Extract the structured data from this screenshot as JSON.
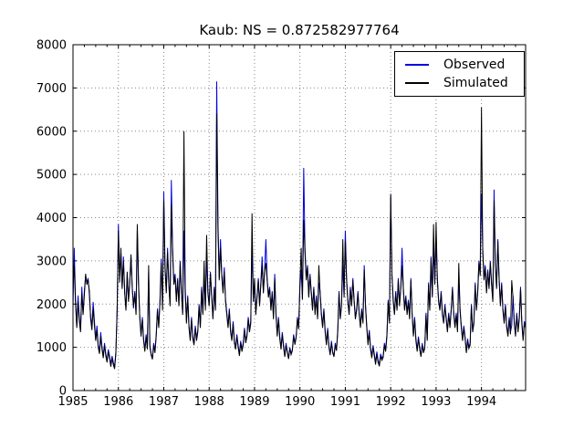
{
  "chart_data": {
    "type": "line",
    "title": "Kaub: NS = 0.872582977764",
    "station": "Kaub",
    "ns_coefficient": "0.872582977764",
    "xlabel": "",
    "ylabel": "",
    "x_axis": {
      "range": [
        1985,
        1994.9722
      ],
      "ticks": [
        1985,
        1986,
        1987,
        1988,
        1989,
        1990,
        1991,
        1992,
        1993,
        1994
      ],
      "tick_labels": [
        "1985",
        "1986",
        "1987",
        "1988",
        "1989",
        "1990",
        "1991",
        "1992",
        "1993",
        "1994"
      ],
      "minor_tick_interval": 0.25
    },
    "y_axis": {
      "range": [
        0,
        8000
      ],
      "ticks": [
        0,
        1000,
        2000,
        3000,
        4000,
        5000,
        6000,
        7000,
        8000
      ],
      "tick_labels": [
        "0",
        "1000",
        "2000",
        "3000",
        "4000",
        "5000",
        "6000",
        "7000",
        "8000"
      ]
    },
    "grid": {
      "visible": true,
      "style": "dotted",
      "color": "#888888"
    },
    "legend": {
      "position": "upper right",
      "entries": [
        {
          "label": "Observed",
          "color": "#0000dd"
        },
        {
          "label": "Simulated",
          "color": "#000000"
        }
      ]
    },
    "series": [
      {
        "name": "Observed",
        "color": "#0000dd",
        "x_start": 1985,
        "x_step_years": 0.0277778,
        "values": [
          1900,
          3300,
          2100,
          1500,
          2200,
          1700,
          1400,
          2400,
          1800,
          2300,
          2650,
          2500,
          2600,
          2200,
          1700,
          1500,
          2050,
          1600,
          1200,
          1500,
          1050,
          900,
          1350,
          1000,
          800,
          1100,
          850,
          700,
          950,
          800,
          600,
          800,
          650,
          550,
          900,
          1800,
          3850,
          2600,
          3200,
          2400,
          3100,
          2300,
          1900,
          2700,
          2100,
          2500,
          3100,
          2400,
          1900,
          2300,
          1800,
          3700,
          2400,
          1700,
          1300,
          1700,
          1200,
          950,
          1300,
          1000,
          2750,
          1050,
          850,
          750,
          1100,
          900,
          1300,
          1900,
          1500,
          2100,
          3050,
          1900,
          4600,
          2900,
          2300,
          3300,
          2500,
          2000,
          4870,
          3300,
          2500,
          2700,
          2100,
          2600,
          2000,
          3000,
          2300,
          1800,
          3700,
          2200,
          1600,
          2200,
          1500,
          1200,
          1700,
          1250,
          1100,
          1500,
          1200,
          1400,
          2000,
          1500,
          2400,
          1800,
          2600,
          1900,
          3100,
          2300,
          2000,
          2750,
          2200,
          1700,
          2400,
          1900,
          7150,
          3900,
          2600,
          3500,
          2700,
          2300,
          2850,
          2100,
          1800,
          1500,
          1900,
          1400,
          1200,
          1600,
          1150,
          1000,
          1300,
          1050,
          850,
          1150,
          950,
          1100,
          1450,
          1150,
          1300,
          1700,
          1400,
          1600,
          3300,
          2100,
          2400,
          1800,
          2200,
          2600,
          2000,
          2500,
          3100,
          2300,
          2800,
          3500,
          2600,
          2200,
          2400,
          1900,
          2300,
          1700,
          2700,
          1800,
          1300,
          1700,
          1250,
          1000,
          1350,
          1050,
          800,
          1100,
          900,
          750,
          1000,
          850,
          950,
          1300,
          1100,
          1250,
          1700,
          1450,
          2400,
          2800,
          2100,
          5150,
          3300,
          2600,
          2900,
          2200,
          2700,
          2300,
          1900,
          2400,
          1800,
          2200,
          1700,
          2500,
          2300,
          1800,
          1500,
          1900,
          1400,
          1100,
          1450,
          1050,
          850,
          1150,
          900,
          800,
          1100,
          950,
          1400,
          2300,
          1700,
          2000,
          2900,
          2200,
          3700,
          2600,
          2100,
          1800,
          2400,
          2000,
          2600,
          2100,
          1700,
          1900,
          2300,
          1800,
          1500,
          1900,
          1600,
          2900,
          2000,
          1500,
          1100,
          1400,
          1000,
          800,
          1050,
          850,
          650,
          900,
          700,
          600,
          850,
          750,
          800,
          1100,
          950,
          1300,
          2100,
          1600,
          4500,
          2700,
          2100,
          1800,
          2300,
          1900,
          2600,
          2000,
          2400,
          3300,
          2400,
          1900,
          2200,
          1800,
          2100,
          1700,
          2600,
          1800,
          1300,
          1700,
          1200,
          950,
          1250,
          1000,
          800,
          1100,
          900,
          1000,
          1800,
          1200,
          2500,
          1900,
          3100,
          2200,
          3300,
          2500,
          3500,
          2600,
          2100,
          1900,
          2300,
          1800,
          1600,
          2000,
          1700,
          1400,
          1800,
          1500,
          1900,
          2400,
          1800,
          1500,
          1800,
          1400,
          2600,
          1900,
          1500,
          1200,
          1500,
          1250,
          900,
          1200,
          1000,
          1100,
          2000,
          1400,
          1600,
          2500,
          1900,
          2300,
          3000,
          2700,
          4550,
          3300,
          2600,
          2900,
          2300,
          2800,
          2400,
          3000,
          2500,
          2100,
          4650,
          2900,
          2400,
          3500,
          2600,
          2000,
          2500,
          1900,
          1600,
          2000,
          1500,
          1300,
          1700,
          1350,
          1500,
          2200,
          1600,
          1300,
          1800,
          1400,
          1700,
          2400,
          1600,
          1200,
          1600,
          1500
        ]
      },
      {
        "name": "Simulated",
        "color": "#000000",
        "x_start": 1985,
        "x_step_years": 0.0277778,
        "values": [
          2400,
          2900,
          2000,
          1450,
          2050,
          1600,
          1350,
          2250,
          1750,
          2200,
          2700,
          2450,
          2550,
          2300,
          1650,
          1400,
          1900,
          1500,
          1150,
          1400,
          1000,
          850,
          1250,
          950,
          750,
          1050,
          800,
          650,
          900,
          750,
          550,
          750,
          600,
          500,
          850,
          1900,
          3700,
          2500,
          3300,
          2350,
          3000,
          2250,
          1850,
          2750,
          2050,
          2450,
          3150,
          2350,
          1950,
          2250,
          1750,
          3850,
          2500,
          1650,
          1250,
          1650,
          1150,
          900,
          1250,
          950,
          2900,
          1000,
          820,
          720,
          1050,
          870,
          1250,
          1850,
          1450,
          2050,
          2950,
          1850,
          4400,
          2800,
          2250,
          3200,
          2450,
          1950,
          4300,
          3200,
          2450,
          2650,
          2050,
          2550,
          1950,
          2950,
          2250,
          1750,
          6000,
          2400,
          1550,
          2150,
          1450,
          1150,
          1650,
          1200,
          1050,
          1450,
          1150,
          1350,
          1950,
          1450,
          2350,
          1750,
          3000,
          1850,
          3600,
          2250,
          1950,
          2700,
          2150,
          1650,
          2350,
          1850,
          6400,
          3700,
          2550,
          3300,
          2650,
          2250,
          2750,
          2050,
          1750,
          1450,
          1850,
          1350,
          1150,
          1550,
          1100,
          950,
          1250,
          1000,
          800,
          1100,
          900,
          1050,
          1400,
          1100,
          1250,
          1650,
          1350,
          1550,
          4100,
          2050,
          2600,
          1750,
          2150,
          2550,
          1950,
          2450,
          2900,
          2250,
          2750,
          2950,
          2550,
          2150,
          2350,
          1850,
          2250,
          1650,
          2600,
          1750,
          1250,
          1650,
          1200,
          950,
          1300,
          1000,
          780,
          1050,
          870,
          730,
          970,
          830,
          920,
          1260,
          1060,
          1220,
          1660,
          1420,
          2500,
          3300,
          2100,
          3950,
          3200,
          2550,
          2850,
          2150,
          2650,
          2250,
          1850,
          2350,
          1750,
          2150,
          1650,
          2900,
          2250,
          1750,
          1450,
          1850,
          1350,
          1050,
          1400,
          1000,
          820,
          1100,
          870,
          780,
          1050,
          920,
          1350,
          2250,
          1650,
          1950,
          3500,
          2150,
          3450,
          2550,
          2050,
          1750,
          2350,
          1950,
          2550,
          2050,
          1650,
          1850,
          2250,
          1750,
          1450,
          1850,
          1550,
          2800,
          1950,
          1450,
          1050,
          1350,
          950,
          750,
          1000,
          800,
          600,
          850,
          650,
          560,
          800,
          700,
          760,
          1050,
          900,
          1250,
          2050,
          1550,
          4550,
          2650,
          2050,
          1750,
          2250,
          1850,
          2550,
          1950,
          2350,
          2900,
          2350,
          1850,
          2150,
          1750,
          2050,
          1650,
          2550,
          1750,
          1250,
          1650,
          1150,
          900,
          1200,
          950,
          780,
          1050,
          870,
          970,
          1750,
          1150,
          2450,
          1850,
          3050,
          2150,
          3850,
          2450,
          3900,
          2550,
          2050,
          1850,
          2250,
          1750,
          1550,
          1950,
          1650,
          1350,
          1750,
          1450,
          1850,
          2350,
          1750,
          1450,
          1750,
          1350,
          2950,
          1850,
          1450,
          1150,
          1450,
          1200,
          870,
          1150,
          970,
          1050,
          1950,
          1350,
          1550,
          2450,
          1850,
          2250,
          2950,
          2650,
          6550,
          3200,
          2550,
          2850,
          2250,
          2750,
          2350,
          2950,
          2450,
          2050,
          4400,
          2850,
          2350,
          3450,
          2550,
          1950,
          2450,
          1850,
          1550,
          1950,
          1450,
          1250,
          1650,
          1300,
          2550,
          2150,
          1550,
          1250,
          1750,
          1350,
          1650,
          2350,
          1550,
          1150,
          1550,
          1450
        ]
      }
    ]
  }
}
